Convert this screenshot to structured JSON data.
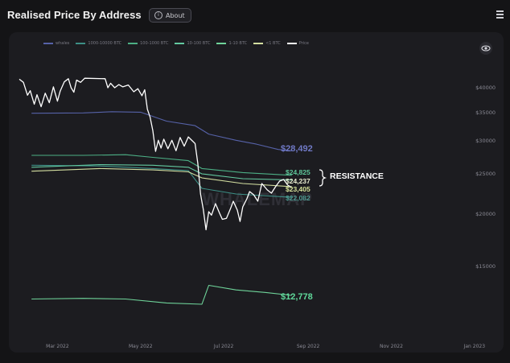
{
  "header": {
    "title": "Realised Price By Address",
    "about_label": "About"
  },
  "chart_data": {
    "type": "line",
    "xlim": [
      "2022-02-01",
      "2023-01-20"
    ],
    "ylim": [
      12000,
      43000
    ],
    "y_ticks": [
      {
        "value": 40000,
        "label": "$40000"
      },
      {
        "value": 35000,
        "label": "$35000"
      },
      {
        "value": 30000,
        "label": "$30000"
      },
      {
        "value": 25000,
        "label": "$25000"
      },
      {
        "value": 20000,
        "label": "$20000"
      },
      {
        "value": 15000,
        "label": "$15000"
      }
    ],
    "x_ticks": [
      {
        "date": "2022-03-01",
        "label": "Mar 2022"
      },
      {
        "date": "2022-05-01",
        "label": "May 2022"
      },
      {
        "date": "2022-07-01",
        "label": "Jul 2022"
      },
      {
        "date": "2022-09-01",
        "label": "Sep 2022"
      },
      {
        "date": "2022-11-01",
        "label": "Nov 2022"
      },
      {
        "date": "2023-01-01",
        "label": "Jan 2023"
      }
    ],
    "series": [
      {
        "name": "whales",
        "color": "#5662a8",
        "points": [
          [
            "2022-02-10",
            34900
          ],
          [
            "2022-03-20",
            34950
          ],
          [
            "2022-04-10",
            35200
          ],
          [
            "2022-05-01",
            35100
          ],
          [
            "2022-05-20",
            33500
          ],
          [
            "2022-06-10",
            32700
          ],
          [
            "2022-06-20",
            31200
          ],
          [
            "2022-07-10",
            30100
          ],
          [
            "2022-07-25",
            29500
          ],
          [
            "2022-08-10",
            28700
          ],
          [
            "2022-08-20",
            28492
          ]
        ]
      },
      {
        "name": "1000-10000 BTC",
        "color": "#3d8f86",
        "points": [
          [
            "2022-02-10",
            26300
          ],
          [
            "2022-04-01",
            26200
          ],
          [
            "2022-05-10",
            25800
          ],
          [
            "2022-06-05",
            25500
          ],
          [
            "2022-06-15",
            23200
          ],
          [
            "2022-07-10",
            22500
          ],
          [
            "2022-08-20",
            22082
          ]
        ]
      },
      {
        "name": "100-1000 BTC",
        "color": "#4caf85",
        "points": [
          [
            "2022-02-10",
            27800
          ],
          [
            "2022-03-20",
            27800
          ],
          [
            "2022-04-20",
            27900
          ],
          [
            "2022-05-10",
            27500
          ],
          [
            "2022-06-05",
            27000
          ],
          [
            "2022-06-15",
            25800
          ],
          [
            "2022-07-15",
            25200
          ],
          [
            "2022-08-20",
            24825
          ]
        ]
      },
      {
        "name": "10-100 BTC",
        "color": "#63c9a0",
        "points": [
          [
            "2022-02-10",
            26000
          ],
          [
            "2022-04-01",
            26400
          ],
          [
            "2022-05-10",
            26300
          ],
          [
            "2022-06-05",
            26000
          ],
          [
            "2022-06-15",
            25000
          ],
          [
            "2022-07-15",
            24400
          ],
          [
            "2022-08-20",
            24237
          ]
        ]
      },
      {
        "name": "1-10 BTC",
        "color": "#6fd49a",
        "points": [
          [
            "2022-02-10",
            12500
          ],
          [
            "2022-03-20",
            12550
          ],
          [
            "2022-04-20",
            12500
          ],
          [
            "2022-05-20",
            12200
          ],
          [
            "2022-06-15",
            12100
          ],
          [
            "2022-06-20",
            13550
          ],
          [
            "2022-07-10",
            13200
          ],
          [
            "2022-08-01",
            13000
          ],
          [
            "2022-08-20",
            12778
          ]
        ]
      },
      {
        "name": "<1 BTC",
        "color": "#d3dea0",
        "points": [
          [
            "2022-02-10",
            25400
          ],
          [
            "2022-04-01",
            25800
          ],
          [
            "2022-05-10",
            25600
          ],
          [
            "2022-06-05",
            25300
          ],
          [
            "2022-06-15",
            24500
          ],
          [
            "2022-07-15",
            23800
          ],
          [
            "2022-08-20",
            23405
          ]
        ]
      },
      {
        "name": "Price",
        "color": "#ffffff",
        "points": [
          [
            "2022-02-01",
            41900
          ],
          [
            "2022-02-04",
            41200
          ],
          [
            "2022-02-07",
            38500
          ],
          [
            "2022-02-09",
            39400
          ],
          [
            "2022-02-12",
            36700
          ],
          [
            "2022-02-14",
            38600
          ],
          [
            "2022-02-17",
            36200
          ],
          [
            "2022-02-20",
            38900
          ],
          [
            "2022-02-23",
            37000
          ],
          [
            "2022-02-26",
            40200
          ],
          [
            "2022-03-01",
            37300
          ],
          [
            "2022-03-03",
            39300
          ],
          [
            "2022-03-06",
            41300
          ],
          [
            "2022-03-09",
            42000
          ],
          [
            "2022-03-11",
            40000
          ],
          [
            "2022-03-13",
            39100
          ],
          [
            "2022-03-15",
            41700
          ],
          [
            "2022-03-18",
            41200
          ],
          [
            "2022-03-21",
            42100
          ],
          [
            "2022-04-05",
            42000
          ],
          [
            "2022-04-07",
            40000
          ],
          [
            "2022-04-09",
            41000
          ],
          [
            "2022-04-12",
            40000
          ],
          [
            "2022-04-15",
            40700
          ],
          [
            "2022-04-18",
            40200
          ],
          [
            "2022-04-22",
            40600
          ],
          [
            "2022-04-26",
            39200
          ],
          [
            "2022-04-29",
            39800
          ],
          [
            "2022-05-02",
            38400
          ],
          [
            "2022-05-04",
            39600
          ],
          [
            "2022-05-06",
            35700
          ],
          [
            "2022-05-08",
            34200
          ],
          [
            "2022-05-10",
            31800
          ],
          [
            "2022-05-12",
            28400
          ],
          [
            "2022-05-14",
            30100
          ],
          [
            "2022-05-16",
            28900
          ],
          [
            "2022-05-18",
            30300
          ],
          [
            "2022-05-21",
            28800
          ],
          [
            "2022-05-24",
            30100
          ],
          [
            "2022-05-27",
            28500
          ],
          [
            "2022-05-30",
            30600
          ],
          [
            "2022-06-02",
            29200
          ],
          [
            "2022-06-05",
            30700
          ],
          [
            "2022-06-08",
            30000
          ],
          [
            "2022-06-10",
            29600
          ],
          [
            "2022-06-12",
            26600
          ],
          [
            "2022-06-14",
            22500
          ],
          [
            "2022-06-16",
            20600
          ],
          [
            "2022-06-18",
            18500
          ],
          [
            "2022-06-20",
            20300
          ],
          [
            "2022-06-22",
            19900
          ],
          [
            "2022-06-25",
            21300
          ],
          [
            "2022-06-28",
            20100
          ],
          [
            "2022-06-30",
            19500
          ],
          [
            "2022-07-03",
            19600
          ],
          [
            "2022-07-06",
            20700
          ],
          [
            "2022-07-08",
            21600
          ],
          [
            "2022-07-11",
            20500
          ],
          [
            "2022-07-13",
            19300
          ],
          [
            "2022-07-15",
            20900
          ],
          [
            "2022-07-18",
            21900
          ],
          [
            "2022-07-20",
            22800
          ],
          [
            "2022-07-23",
            22400
          ],
          [
            "2022-07-26",
            21600
          ],
          [
            "2022-07-29",
            23800
          ],
          [
            "2022-08-02",
            23000
          ],
          [
            "2022-08-05",
            22600
          ],
          [
            "2022-08-08",
            23400
          ],
          [
            "2022-08-11",
            24100
          ],
          [
            "2022-08-14",
            24300
          ],
          [
            "2022-08-17",
            23600
          ],
          [
            "2022-08-20",
            23300
          ]
        ]
      }
    ],
    "value_labels": [
      {
        "text": "$28,492",
        "color": "#6f78c4"
      },
      {
        "text": "$24,825",
        "color": "#5fc79a"
      },
      {
        "text": "$24,237",
        "color": "#e8ecd0"
      },
      {
        "text": "$23,405",
        "color": "#d6e39a"
      },
      {
        "text": "$22,082",
        "color": "#4e9a91"
      },
      {
        "text": "$12,778",
        "color": "#5fd89a"
      }
    ],
    "annotation": "RESISTANCE",
    "watermark": "WHALEMAP",
    "legend_position": "top-left"
  }
}
